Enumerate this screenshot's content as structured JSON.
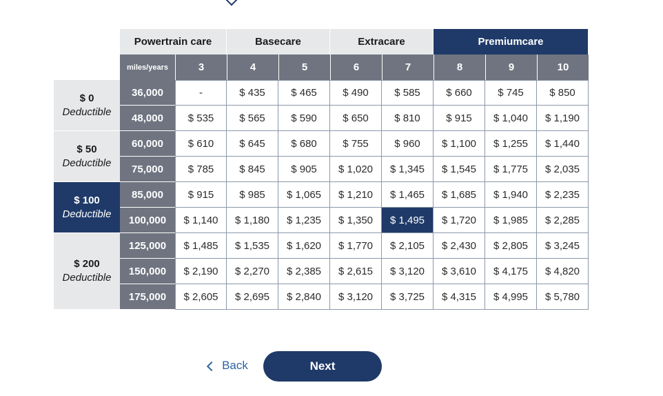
{
  "plans": [
    {
      "label": "Powertrain care",
      "premium": false
    },
    {
      "label": "Basecare",
      "premium": false
    },
    {
      "label": "Extracare",
      "premium": false
    },
    {
      "label": "Premiumcare",
      "premium": true
    }
  ],
  "years_header": "miles/years",
  "years": [
    "3",
    "4",
    "5",
    "6",
    "7",
    "8",
    "9",
    "10"
  ],
  "deductibles": [
    {
      "amount": "$ 0",
      "label": "Deductible",
      "active": false
    },
    {
      "amount": "$ 50",
      "label": "Deductible",
      "active": false
    },
    {
      "amount": "$ 100",
      "label": "Deductible",
      "active": true
    },
    {
      "amount": "$ 200",
      "label": "Deductible",
      "active": false
    }
  ],
  "rows": [
    {
      "miles": "36,000",
      "prices": [
        "-",
        "$ 435",
        "$ 465",
        "$ 490",
        "$ 585",
        "$ 660",
        "$ 745",
        "$ 850"
      ]
    },
    {
      "miles": "48,000",
      "prices": [
        "$ 535",
        "$ 565",
        "$ 590",
        "$ 650",
        "$ 810",
        "$ 915",
        "$ 1,040",
        "$ 1,190"
      ]
    },
    {
      "miles": "60,000",
      "prices": [
        "$ 610",
        "$ 645",
        "$ 680",
        "$ 755",
        "$ 960",
        "$ 1,100",
        "$ 1,255",
        "$ 1,440"
      ]
    },
    {
      "miles": "75,000",
      "prices": [
        "$ 785",
        "$ 845",
        "$ 905",
        "$ 1,020",
        "$ 1,345",
        "$ 1,545",
        "$ 1,775",
        "$ 2,035"
      ]
    },
    {
      "miles": "85,000",
      "prices": [
        "$ 915",
        "$ 985",
        "$ 1,065",
        "$ 1,210",
        "$ 1,465",
        "$ 1,685",
        "$ 1,940",
        "$ 2,235"
      ]
    },
    {
      "miles": "100,000",
      "prices": [
        "$ 1,140",
        "$ 1,180",
        "$ 1,235",
        "$ 1,350",
        "$ 1,495",
        "$ 1,720",
        "$ 1,985",
        "$ 2,285"
      ]
    },
    {
      "miles": "125,000",
      "prices": [
        "$ 1,485",
        "$ 1,535",
        "$ 1,620",
        "$ 1,770",
        "$ 2,105",
        "$ 2,430",
        "$ 2,805",
        "$ 3,245"
      ]
    },
    {
      "miles": "150,000",
      "prices": [
        "$ 2,190",
        "$ 2,270",
        "$ 2,385",
        "$ 2,615",
        "$ 3,120",
        "$ 3,610",
        "$ 4,175",
        "$ 4,820"
      ]
    },
    {
      "miles": "175,000",
      "prices": [
        "$ 2,605",
        "$ 2,695",
        "$ 2,840",
        "$ 3,120",
        "$ 3,725",
        "$ 4,315",
        "$ 4,995",
        "$ 5,780"
      ]
    }
  ],
  "selected_cell": {
    "row": 5,
    "col": 4
  },
  "nav": {
    "back_label": "Back",
    "next_label": "Next"
  },
  "colors": {
    "navy": "#1f3a68",
    "gray_header": "#6f7480",
    "light_gray": "#e7e8ea",
    "link_blue": "#2f62a3"
  }
}
